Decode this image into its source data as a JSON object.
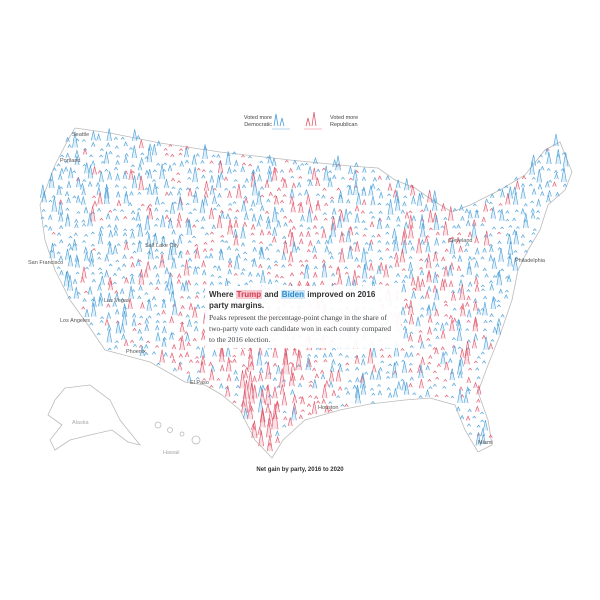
{
  "legend": {
    "democratic": "Voted more Democratic",
    "republican": "Voted more Republican"
  },
  "annotation": {
    "heading": [
      "Where ",
      "Trump",
      " and ",
      "Biden",
      " improved on 2016 party margins."
    ],
    "body": "Peaks represent the percentage-point change in the share of two-party vote each candidate won in each county compared to the 2016 election."
  },
  "cities": [
    "Seattle",
    "Portland",
    "San Francisco",
    "Los Angeles",
    "Las Vegas",
    "Salt Lake City",
    "Phoenix",
    "El Paso",
    "Cleveland",
    "Philadelphia",
    "Houston",
    "Miami"
  ],
  "regions": [
    "Alaska",
    "Hawaii"
  ],
  "footer": "Net gain by party, 2016 to 2020"
}
